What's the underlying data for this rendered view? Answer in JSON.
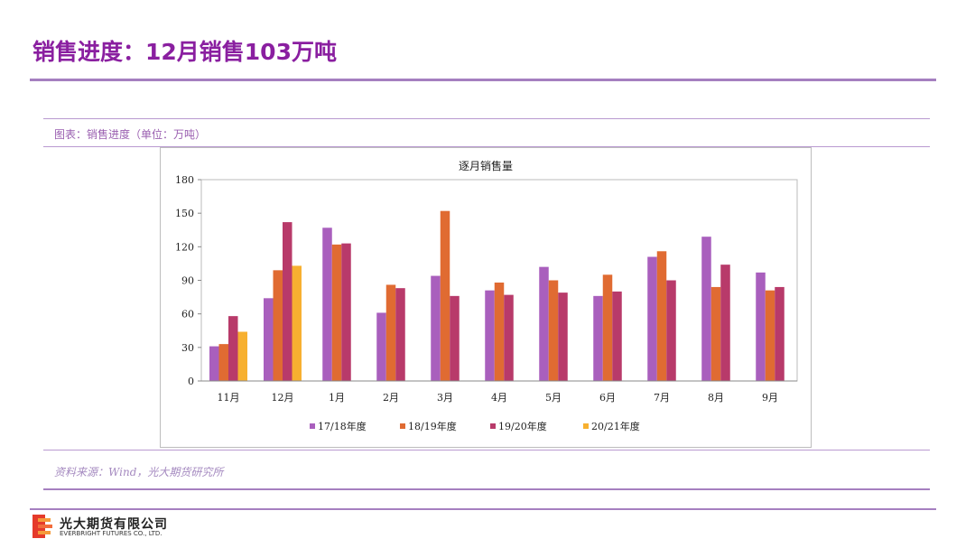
{
  "header": {
    "title": "销售进度：12月销售103万吨"
  },
  "caption": "图表：销售进度（单位：万吨）",
  "source": "资料来源：Wind，光大期货研究所",
  "footer": {
    "company_cn": "光大期货有限公司",
    "company_en": "EVERBRIGHT FUTURES CO., LTD."
  },
  "colors": {
    "accent": "#8a1fa0",
    "line": "#a57fc0"
  },
  "chart_data": {
    "type": "bar",
    "title": "逐月销售量",
    "xlabel": "",
    "ylabel": "",
    "ylim": [
      0,
      180
    ],
    "yticks": [
      0,
      30,
      60,
      90,
      120,
      150,
      180
    ],
    "grid": false,
    "legend": "bottom",
    "categories": [
      "11月",
      "12月",
      "1月",
      "2月",
      "3月",
      "4月",
      "5月",
      "6月",
      "7月",
      "8月",
      "9月"
    ],
    "series": [
      {
        "name": "17/18年度",
        "color": "#a95fbd",
        "values": [
          31,
          74,
          137,
          61,
          94,
          81,
          102,
          76,
          111,
          129,
          97
        ]
      },
      {
        "name": "18/19年度",
        "color": "#e06b32",
        "values": [
          33,
          99,
          122,
          86,
          152,
          88,
          90,
          95,
          116,
          84,
          81
        ]
      },
      {
        "name": "19/20年度",
        "color": "#b83a6a",
        "values": [
          58,
          142,
          123,
          83,
          76,
          77,
          79,
          80,
          90,
          104,
          84
        ]
      },
      {
        "name": "20/21年度",
        "color": "#f7b030",
        "values": [
          44,
          103,
          null,
          null,
          null,
          null,
          null,
          null,
          null,
          null,
          null
        ]
      }
    ]
  }
}
